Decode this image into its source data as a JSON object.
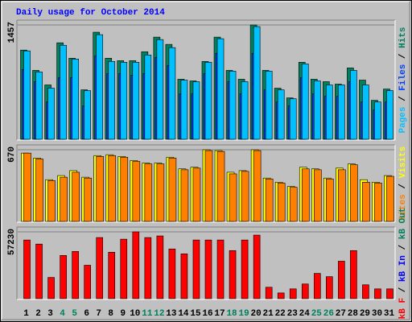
{
  "chart_data": [
    {
      "type": "bar",
      "title": "Daily usage for October 2014",
      "legend_separator": " / ",
      "ylim": [
        0,
        1457
      ],
      "yticks": [
        1457
      ],
      "series": [
        {
          "name": "Pages",
          "color": "#00c0ff",
          "values": [
            1129,
            862,
            657,
            1200,
            1026,
            626,
            1334,
            995,
            985,
            985,
            1077,
            1272,
            1170,
            759,
            739,
            985,
            1283,
            872,
            739,
            1436,
            872,
            636,
            523,
            964,
            749,
            698,
            698,
            882,
            698,
            482,
            626
          ]
        },
        {
          "name": "Files",
          "color": "#0040ff",
          "values": [
            893,
            739,
            482,
            790,
            790,
            431,
            1067,
            841,
            841,
            821,
            841,
            1047,
            944,
            585,
            585,
            841,
            1098,
            739,
            585,
            1098,
            636,
            482,
            431,
            790,
            585,
            554,
            554,
            739,
            482,
            380,
            482
          ]
        },
        {
          "name": "Hits",
          "color": "#00805c",
          "values": [
            1139,
            882,
            698,
            1231,
            1036,
            636,
            1365,
            1036,
            1005,
            1005,
            1118,
            1303,
            1211,
            770,
            749,
            995,
            1303,
            882,
            770,
            1457,
            882,
            657,
            534,
            985,
            770,
            739,
            708,
            913,
            759,
            503,
            646
          ]
        }
      ]
    },
    {
      "type": "bar",
      "legend_separator": " / ",
      "ylim": [
        0,
        670
      ],
      "yticks": [
        670
      ],
      "series": [
        {
          "name": "Sites",
          "color": "#ff8000",
          "values": [
            639,
            585,
            385,
            416,
            462,
            408,
            608,
            616,
            601,
            562,
            539,
            539,
            593,
            485,
            500,
            662,
            654,
            447,
            470,
            662,
            400,
            362,
            323,
            493,
            485,
            400,
            485,
            531,
            370,
            362,
            424
          ]
        },
        {
          "name": "Visits",
          "color": "#ffff00",
          "values": [
            639,
            593,
            393,
            431,
            477,
            416,
            616,
            624,
            608,
            570,
            547,
            547,
            601,
            493,
            508,
            670,
            662,
            462,
            477,
            670,
            408,
            370,
            331,
            508,
            493,
            408,
            500,
            539,
            393,
            370,
            431
          ]
        }
      ]
    },
    {
      "type": "bar",
      "legend_separator": " / ",
      "ylim": [
        0,
        57230
      ],
      "yticks": [
        57230
      ],
      "categories": [
        "1",
        "2",
        "3",
        "4",
        "5",
        "6",
        "7",
        "8",
        "9",
        "10",
        "11",
        "12",
        "13",
        "14",
        "15",
        "16",
        "17",
        "18",
        "19",
        "20",
        "21",
        "22",
        "23",
        "24",
        "25",
        "26",
        "27",
        "28",
        "29",
        "30",
        "31"
      ],
      "category_colors": [
        "#000000",
        "#000000",
        "#000000",
        "#00805c",
        "#00805c",
        "#000000",
        "#000000",
        "#000000",
        "#000000",
        "#000000",
        "#00805c",
        "#00805c",
        "#000000",
        "#000000",
        "#000000",
        "#000000",
        "#000000",
        "#00805c",
        "#00805c",
        "#000000",
        "#000000",
        "#000000",
        "#000000",
        "#000000",
        "#00805c",
        "#00805c",
        "#000000",
        "#000000",
        "#000000",
        "#000000",
        "#000000"
      ],
      "series": [
        {
          "name": "kB F",
          "color": "#ff0000",
          "values": [
            50334,
            46886,
            18617,
            37233,
            40681,
            28959,
            52402,
            39991,
            51023,
            57230,
            52402,
            53781,
            42749,
            38612,
            50334,
            50334,
            50334,
            41370,
            50334,
            54471,
            10343,
            5516,
            8964,
            13101,
            22064,
            19306,
            32407,
            41370,
            12411,
            8964,
            8964
          ]
        },
        {
          "name": "kB In",
          "color": "#0000ff",
          "values": [
            null,
            null,
            null,
            null,
            null,
            null,
            null,
            null,
            null,
            null,
            null,
            null,
            null,
            null,
            null,
            null,
            null,
            null,
            null,
            null,
            null,
            null,
            null,
            null,
            null,
            null,
            null,
            null,
            null,
            null,
            null
          ]
        },
        {
          "name": "kB Out",
          "color": "#00805c",
          "values": [
            null,
            null,
            null,
            null,
            null,
            null,
            null,
            null,
            null,
            null,
            null,
            null,
            null,
            null,
            null,
            null,
            null,
            null,
            null,
            null,
            null,
            null,
            null,
            null,
            null,
            null,
            null,
            null,
            null,
            null,
            null
          ]
        }
      ]
    }
  ]
}
